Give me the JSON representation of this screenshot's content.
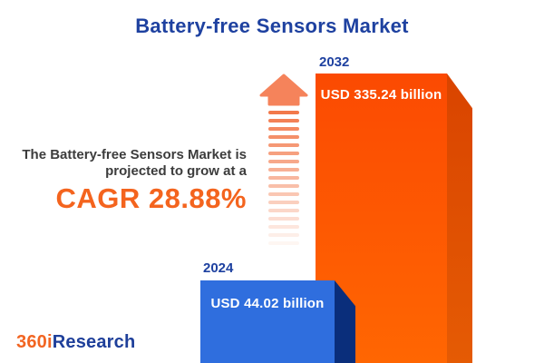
{
  "title": "Battery-free Sensors Market",
  "promo": {
    "line1": "The Battery-free Sensors Market is",
    "line2": "projected to grow at a",
    "cagr": "CAGR 28.88%"
  },
  "bars": {
    "b2024": {
      "year": "2024",
      "value_label": "USD 44.02 billion",
      "front_color": "#2F6EDE",
      "side_color": "#0A2E7B"
    },
    "b2032": {
      "year": "2032",
      "value_label": "USD 335.24 billion",
      "front_top_color": "#FB4A02",
      "front_bottom_color": "#FF6602",
      "side_top_color": "#D94400",
      "side_bottom_color": "#E55B04"
    }
  },
  "arrow": {
    "name": "growth-arrow-icon",
    "head_color": "#F5835B",
    "dash_color": "#F2794B",
    "dash_count": 17
  },
  "logo": {
    "part1": "360i",
    "part2": "Research",
    "part1_color": "#F26522",
    "part2_color": "#1E3F9A"
  },
  "colors": {
    "title_text": "#1E41A0",
    "cagr_text": "#F4641E",
    "body_text": "#3C3C3C",
    "value_text": "#FFFFFF",
    "background": "#FFFFFF"
  },
  "chart_data": {
    "type": "bar",
    "title": "Battery-free Sensors Market",
    "categories": [
      "2024",
      "2032"
    ],
    "values": [
      44.02,
      335.24
    ],
    "unit": "USD billion",
    "data_labels": [
      "USD 44.02 billion",
      "USD 335.24 billion"
    ],
    "annotation": "The Battery-free Sensors Market is projected to grow at a CAGR 28.88%",
    "cagr_percent": 28.88,
    "xlabel": "",
    "ylabel": "",
    "legend": false,
    "grid": false,
    "bar_colors": [
      "#2F6EDE",
      "#FB5502"
    ]
  }
}
